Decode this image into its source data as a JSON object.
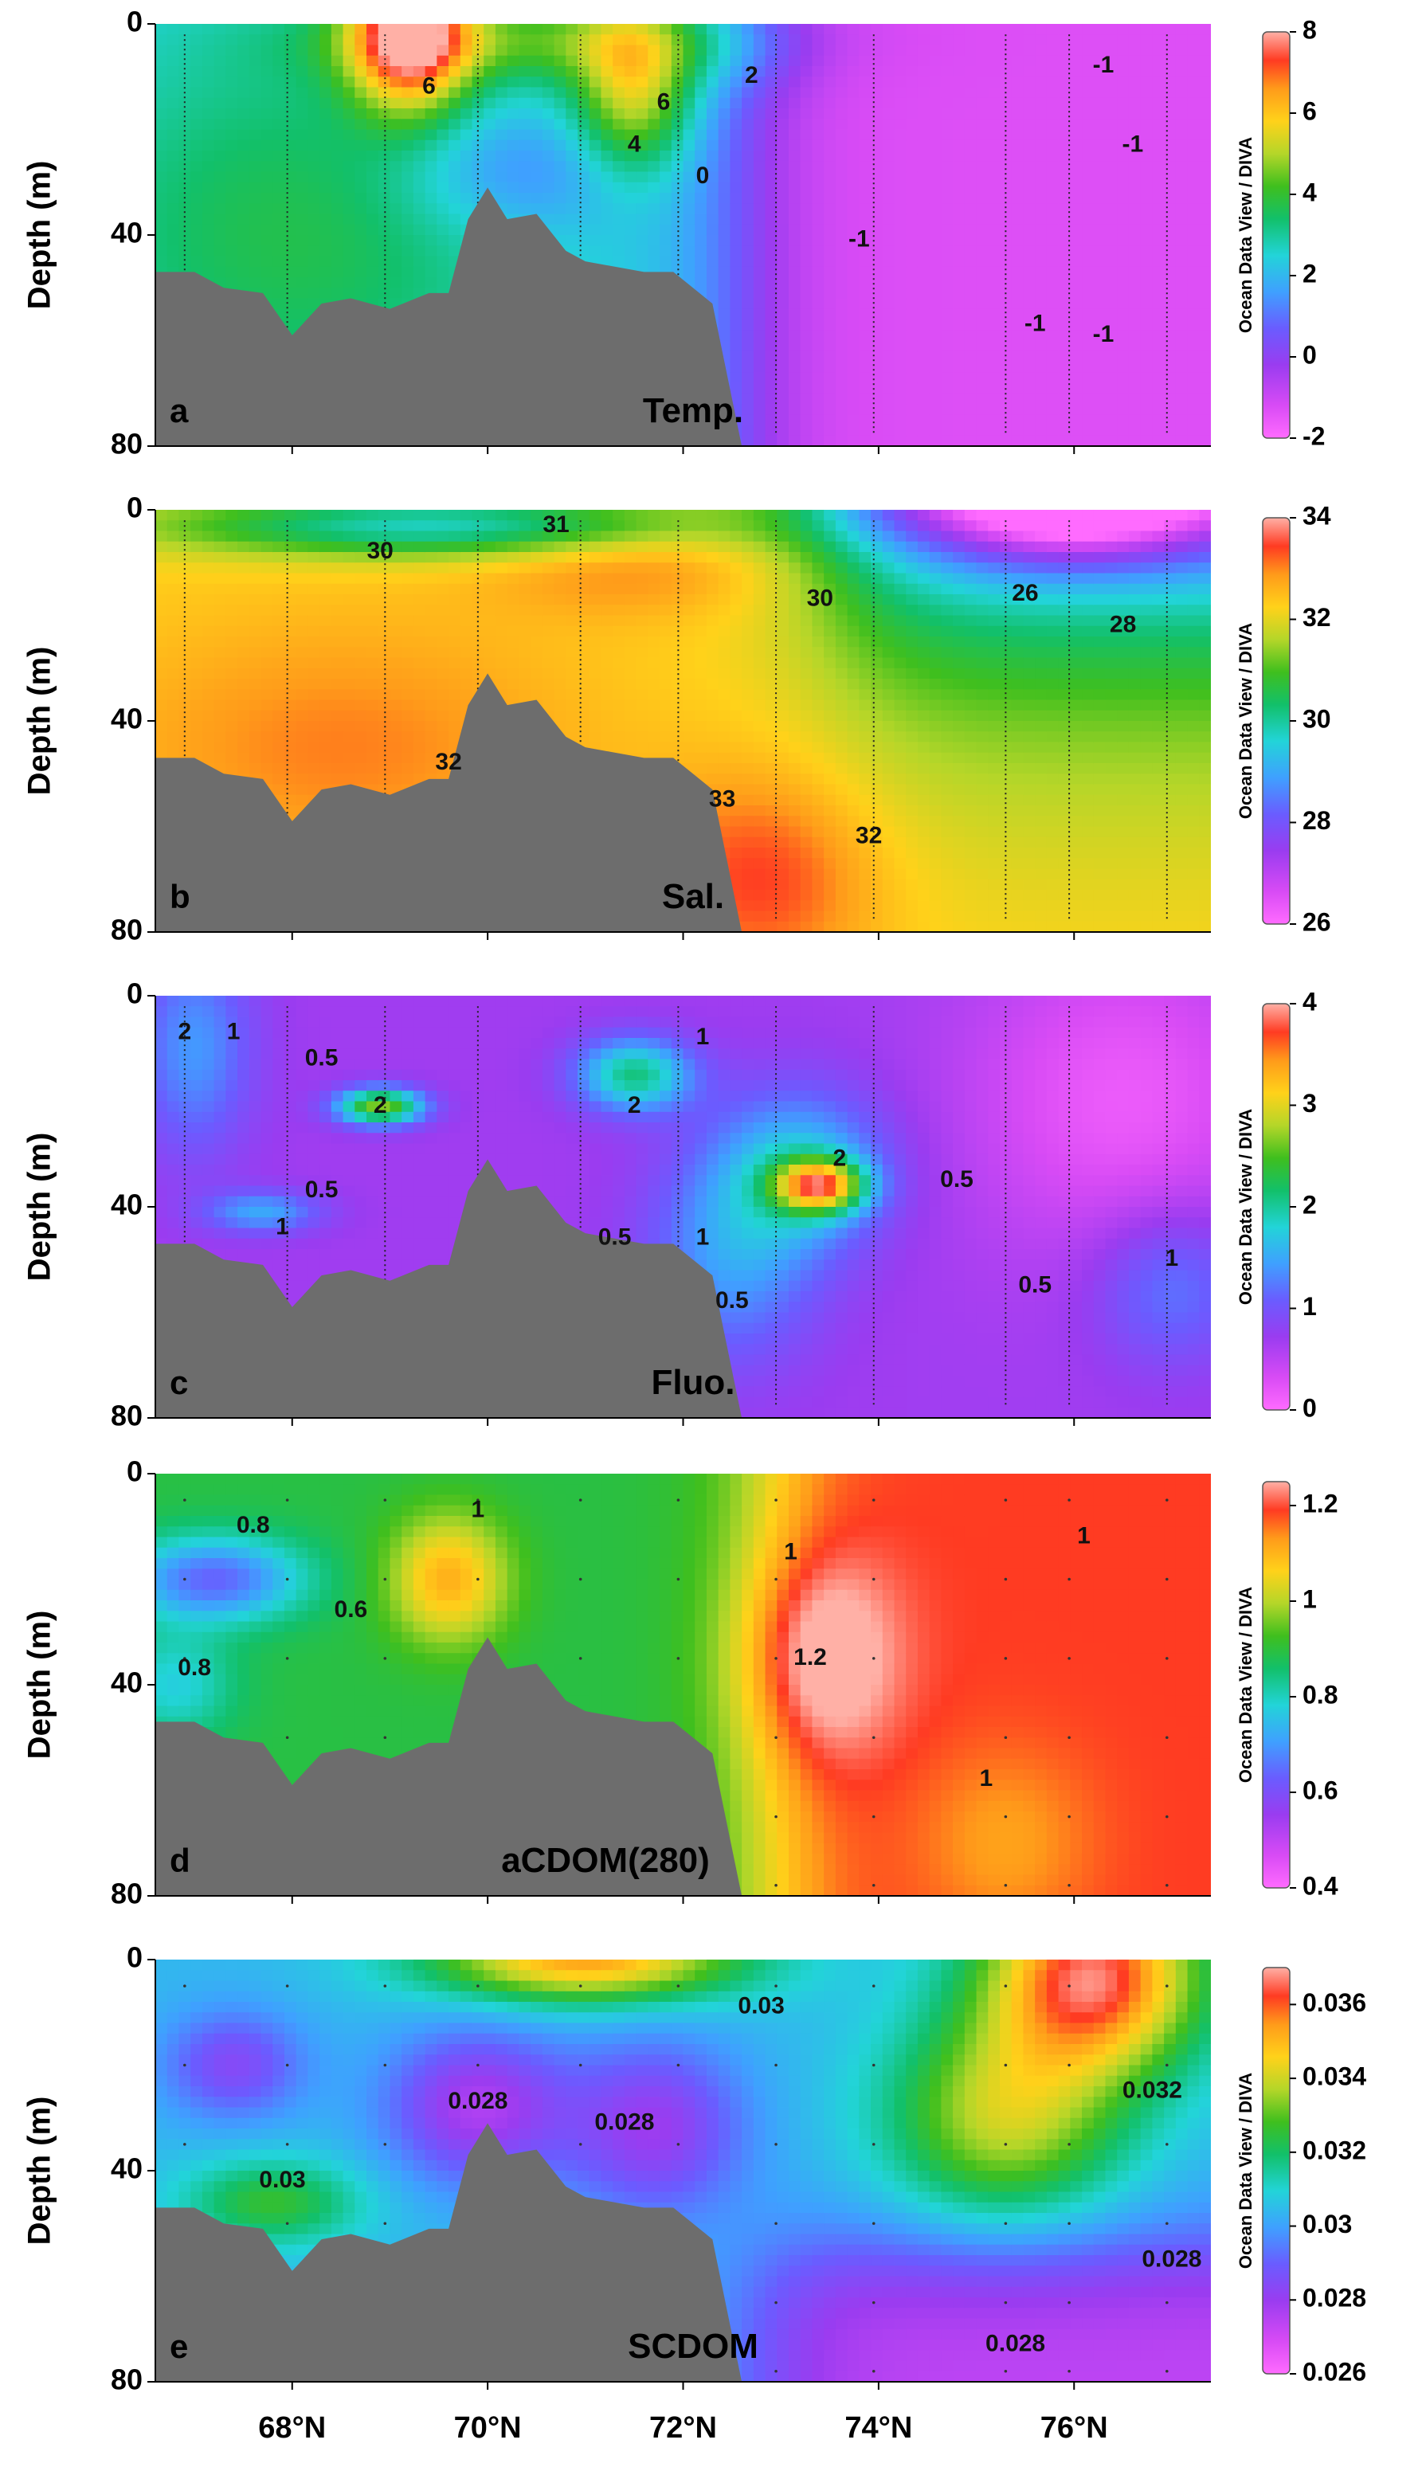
{
  "chart_data": {
    "type": "heatmap",
    "common": {
      "ylabel": "Depth (m)",
      "y_ticks": [
        "0",
        "40",
        "80"
      ],
      "x_ticks": [
        "68°N",
        "70°N",
        "72°N",
        "74°N",
        "76°N"
      ],
      "x_tick_values": [
        68,
        70,
        72,
        74,
        76
      ],
      "xlim": [
        66.6,
        77.4
      ],
      "ylim": [
        0,
        80
      ],
      "colorbar_label": "Ocean Data View / DIVA"
    },
    "panels": [
      {
        "id": "a",
        "variable": "Temp.",
        "colorbar_ticks": [
          "8",
          "6",
          "4",
          "2",
          "0",
          "-2"
        ],
        "cmin": -2,
        "cmax": 8,
        "contour_labels": [
          {
            "text": "6",
            "x": 69.4,
            "y": 12
          },
          {
            "text": "6",
            "x": 71.8,
            "y": 15
          },
          {
            "text": "4",
            "x": 71.5,
            "y": 23
          },
          {
            "text": "2",
            "x": 72.7,
            "y": 10
          },
          {
            "text": "0",
            "x": 72.2,
            "y": 29
          },
          {
            "text": "-1",
            "x": 76.3,
            "y": 8
          },
          {
            "text": "-1",
            "x": 76.6,
            "y": 23
          },
          {
            "text": "-1",
            "x": 73.8,
            "y": 41
          },
          {
            "text": "-1",
            "x": 75.6,
            "y": 57
          },
          {
            "text": "-1",
            "x": 76.3,
            "y": 59
          }
        ]
      },
      {
        "id": "b",
        "variable": "Sal.",
        "colorbar_ticks": [
          "34",
          "32",
          "30",
          "28",
          "26"
        ],
        "cmin": 26,
        "cmax": 34,
        "contour_labels": [
          {
            "text": "30",
            "x": 68.9,
            "y": 8
          },
          {
            "text": "31",
            "x": 70.7,
            "y": 3
          },
          {
            "text": "30",
            "x": 73.4,
            "y": 17
          },
          {
            "text": "26",
            "x": 75.5,
            "y": 16
          },
          {
            "text": "28",
            "x": 76.5,
            "y": 22
          },
          {
            "text": "32",
            "x": 69.6,
            "y": 48
          },
          {
            "text": "33",
            "x": 72.4,
            "y": 55
          },
          {
            "text": "32",
            "x": 73.9,
            "y": 62
          }
        ]
      },
      {
        "id": "c",
        "variable": "Fluo.",
        "colorbar_ticks": [
          "4",
          "3",
          "2",
          "1",
          "0"
        ],
        "cmin": 0,
        "cmax": 4,
        "contour_labels": [
          {
            "text": "2",
            "x": 66.9,
            "y": 7
          },
          {
            "text": "1",
            "x": 67.4,
            "y": 7
          },
          {
            "text": "0.5",
            "x": 68.3,
            "y": 12
          },
          {
            "text": "2",
            "x": 68.9,
            "y": 21
          },
          {
            "text": "2",
            "x": 71.5,
            "y": 21
          },
          {
            "text": "1",
            "x": 72.2,
            "y": 8
          },
          {
            "text": "0.5",
            "x": 68.3,
            "y": 37
          },
          {
            "text": "1",
            "x": 67.9,
            "y": 44
          },
          {
            "text": "0.5",
            "x": 71.3,
            "y": 46
          },
          {
            "text": "1",
            "x": 72.2,
            "y": 46
          },
          {
            "text": "0.5",
            "x": 72.5,
            "y": 58
          },
          {
            "text": "2",
            "x": 73.6,
            "y": 31
          },
          {
            "text": "0.5",
            "x": 74.8,
            "y": 35
          },
          {
            "text": "0.5",
            "x": 75.6,
            "y": 55
          },
          {
            "text": "1",
            "x": 77.0,
            "y": 50
          }
        ]
      },
      {
        "id": "d",
        "variable": "aCDOM(280)",
        "colorbar_ticks": [
          "1.2",
          "1",
          "0.8",
          "0.6",
          "0.4"
        ],
        "cmin": 0.4,
        "cmax": 1.25,
        "contour_labels": [
          {
            "text": "0.8",
            "x": 67.6,
            "y": 10
          },
          {
            "text": "1",
            "x": 69.9,
            "y": 7
          },
          {
            "text": "0.6",
            "x": 68.6,
            "y": 26
          },
          {
            "text": "0.8",
            "x": 67.0,
            "y": 37
          },
          {
            "text": "1",
            "x": 73.1,
            "y": 15
          },
          {
            "text": "1",
            "x": 76.1,
            "y": 12
          },
          {
            "text": "1.2",
            "x": 73.3,
            "y": 35
          },
          {
            "text": "1",
            "x": 75.1,
            "y": 58
          }
        ]
      },
      {
        "id": "e",
        "variable": "SCDOM",
        "colorbar_ticks": [
          "0.036",
          "0.034",
          "0.032",
          "0.03",
          "0.028",
          "0.026"
        ],
        "cmin": 0.026,
        "cmax": 0.037,
        "contour_labels": [
          {
            "text": "0.03",
            "x": 72.8,
            "y": 9
          },
          {
            "text": "0.028",
            "x": 69.9,
            "y": 27
          },
          {
            "text": "0.028",
            "x": 71.4,
            "y": 31
          },
          {
            "text": "0.03",
            "x": 67.9,
            "y": 42
          },
          {
            "text": "0.032",
            "x": 76.8,
            "y": 25
          },
          {
            "text": "0.028",
            "x": 77.0,
            "y": 57
          },
          {
            "text": "0.028",
            "x": 75.4,
            "y": 73
          }
        ]
      }
    ]
  }
}
